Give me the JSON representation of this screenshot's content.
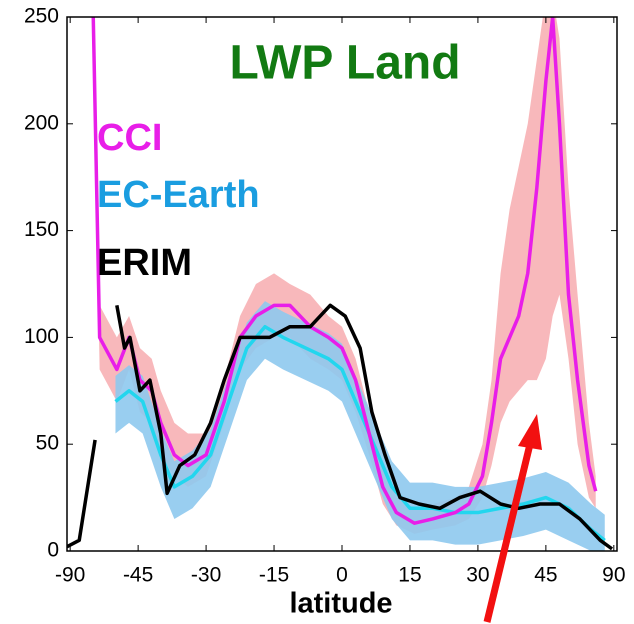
{
  "chart_data": {
    "type": "line",
    "title": "LWP Land",
    "x_label": "latitude",
    "xlim": [
      -60.7,
      60.7
    ],
    "xticks": [
      {
        "value": -60,
        "label": "-90"
      },
      -45,
      -30,
      -15,
      0,
      15,
      30,
      45,
      {
        "value": 60,
        "label": "90"
      }
    ],
    "ylim": [
      0,
      250
    ],
    "yticks": [
      0,
      50,
      100,
      150,
      200,
      250
    ],
    "series": [
      {
        "name": "CCI",
        "color": "#e81ee8",
        "band_color": "#f7b0b4",
        "x": [
          -55,
          -53.5,
          -49.7,
          -47,
          -44.6,
          -42,
          -40,
          -37,
          -34,
          -30,
          -26,
          -22.5,
          -19,
          -15,
          -11.5,
          -7,
          -3,
          0,
          3,
          6,
          9,
          12,
          16,
          20,
          25,
          28,
          31,
          33,
          35,
          37,
          39,
          41,
          43,
          45,
          46.5,
          48,
          50,
          52,
          54.5,
          56
        ],
        "values": [
          260,
          100,
          85,
          100,
          80,
          75,
          60,
          45,
          40,
          45,
          70,
          100,
          110,
          115,
          115,
          105,
          100,
          95,
          80,
          55,
          30,
          18,
          13,
          15,
          18,
          22,
          35,
          60,
          90,
          100,
          110,
          130,
          170,
          220,
          250,
          200,
          120,
          80,
          40,
          28
        ],
        "upper": [
          260,
          115,
          100,
          110,
          95,
          90,
          75,
          60,
          55,
          55,
          80,
          110,
          125,
          130,
          125,
          120,
          110,
          105,
          90,
          65,
          40,
          25,
          20,
          22,
          25,
          30,
          50,
          80,
          130,
          160,
          180,
          200,
          230,
          260,
          260,
          240,
          170,
          120,
          60,
          35
        ],
        "lower": [
          255,
          85,
          70,
          85,
          65,
          60,
          45,
          35,
          30,
          35,
          60,
          85,
          95,
          100,
          100,
          90,
          85,
          80,
          65,
          45,
          22,
          12,
          8,
          10,
          12,
          15,
          25,
          40,
          60,
          70,
          75,
          80,
          80,
          90,
          110,
          120,
          90,
          50,
          25,
          20
        ]
      },
      {
        "name": "EC-Earth",
        "color": "#22d6ee",
        "band_color": "#8ec9ee",
        "legend_color": "#1a9de0",
        "x": [
          -50,
          -47,
          -44,
          -40,
          -37,
          -33,
          -29,
          -25,
          -21,
          -17,
          -13,
          -8,
          -3,
          0,
          3,
          7,
          11,
          15,
          20,
          25,
          30,
          35,
          40,
          45,
          50,
          55,
          58
        ],
        "values": [
          70,
          75,
          70,
          45,
          30,
          35,
          45,
          70,
          95,
          105,
          100,
          95,
          90,
          85,
          70,
          50,
          30,
          20,
          20,
          18,
          18,
          20,
          22,
          25,
          20,
          10,
          5
        ],
        "upper": [
          82,
          87,
          82,
          57,
          42,
          47,
          57,
          82,
          107,
          117,
          112,
          107,
          102,
          97,
          82,
          62,
          42,
          32,
          32,
          30,
          30,
          32,
          34,
          37,
          32,
          22,
          17
        ],
        "lower": [
          55,
          60,
          55,
          30,
          15,
          20,
          30,
          55,
          80,
          90,
          85,
          80,
          75,
          70,
          55,
          35,
          15,
          5,
          5,
          3,
          3,
          5,
          7,
          10,
          5,
          0,
          0
        ]
      },
      {
        "name": "ERIM",
        "color": "#000000",
        "x": [
          -60.7,
          -58,
          -54.5,
          -52,
          -49.7,
          -48,
          -46.8,
          -44.6,
          -42.4,
          -40,
          -38.6,
          -35.8,
          -32.5,
          -29,
          -26,
          -22.5,
          -19,
          -16,
          -11.5,
          -7,
          -2.6,
          0.7,
          4,
          6.6,
          9.5,
          12.8,
          17,
          21.6,
          26,
          30.5,
          35,
          39,
          43.7,
          48,
          52.5,
          57,
          59.6
        ],
        "values": [
          2,
          5,
          52,
          null,
          115,
          95,
          100,
          75,
          80,
          55,
          27,
          40,
          45,
          60,
          80,
          100,
          100,
          100,
          105,
          105,
          115,
          110,
          95,
          65,
          45,
          25,
          22,
          20,
          25,
          28,
          22,
          20,
          22,
          22,
          15,
          5,
          1
        ]
      }
    ],
    "title_color": "#127a12"
  }
}
